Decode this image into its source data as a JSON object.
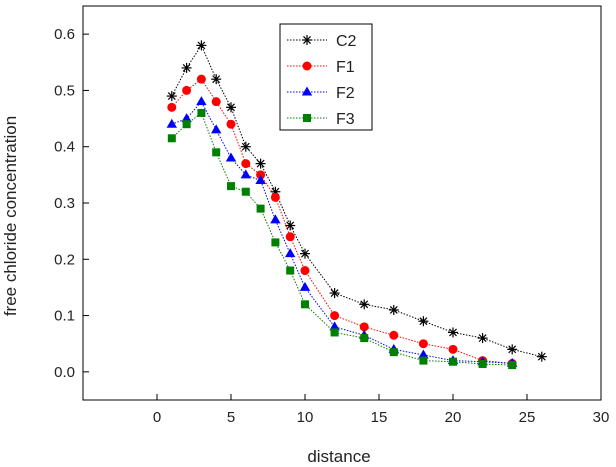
{
  "chart_data": {
    "type": "line",
    "xlabel": "distance",
    "ylabel": "free chloride concentration",
    "xlim": [
      -5,
      30
    ],
    "ylim": [
      -0.05,
      0.65
    ],
    "xticks": [
      0,
      5,
      10,
      15,
      20,
      25,
      30
    ],
    "yticks": [
      0.0,
      0.1,
      0.2,
      0.3,
      0.4,
      0.5,
      0.6
    ],
    "xtick_labels": [
      "0",
      "5",
      "10",
      "15",
      "20",
      "25",
      "30"
    ],
    "ytick_labels": [
      "0.0",
      "0.1",
      "0.2",
      "0.3",
      "0.4",
      "0.5",
      "0.6"
    ],
    "grid": false,
    "legend_position": "top-center",
    "series": [
      {
        "name": "C2",
        "color": "#000000",
        "marker": "asterisk",
        "x": [
          1,
          2,
          3,
          4,
          5,
          6,
          7,
          8,
          9,
          10,
          12,
          14,
          16,
          18,
          20,
          22,
          24,
          26
        ],
        "y": [
          0.49,
          0.54,
          0.58,
          0.52,
          0.47,
          0.4,
          0.37,
          0.32,
          0.26,
          0.21,
          0.14,
          0.12,
          0.11,
          0.09,
          0.07,
          0.06,
          0.04,
          0.027
        ]
      },
      {
        "name": "F1",
        "color": "#ff0000",
        "marker": "circle",
        "x": [
          1,
          2,
          3,
          4,
          5,
          6,
          7,
          8,
          9,
          10,
          12,
          14,
          16,
          18,
          20,
          22,
          24
        ],
        "y": [
          0.47,
          0.5,
          0.52,
          0.48,
          0.44,
          0.37,
          0.35,
          0.31,
          0.24,
          0.18,
          0.1,
          0.08,
          0.065,
          0.05,
          0.04,
          0.02,
          0.015
        ]
      },
      {
        "name": "F2",
        "color": "#0000ff",
        "marker": "triangle",
        "x": [
          1,
          2,
          3,
          4,
          5,
          6,
          7,
          8,
          9,
          10,
          12,
          14,
          16,
          18,
          20,
          22,
          24
        ],
        "y": [
          0.44,
          0.45,
          0.48,
          0.43,
          0.38,
          0.35,
          0.34,
          0.27,
          0.21,
          0.15,
          0.08,
          0.065,
          0.04,
          0.03,
          0.02,
          0.018,
          0.015
        ]
      },
      {
        "name": "F3",
        "color": "#008000",
        "marker": "square",
        "x": [
          1,
          2,
          3,
          4,
          5,
          6,
          7,
          8,
          9,
          10,
          12,
          14,
          16,
          18,
          20,
          22,
          24
        ],
        "y": [
          0.415,
          0.44,
          0.46,
          0.39,
          0.33,
          0.32,
          0.29,
          0.23,
          0.18,
          0.12,
          0.07,
          0.06,
          0.035,
          0.02,
          0.018,
          0.014,
          0.012
        ]
      }
    ]
  }
}
